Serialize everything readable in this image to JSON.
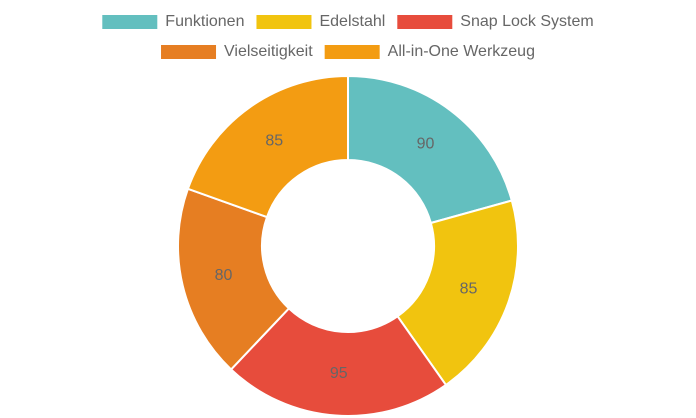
{
  "chart_data": {
    "type": "doughnut",
    "categories": [
      "Funktionen",
      "Edelstahl",
      "Snap Lock System",
      "Vielseitigkeit",
      "All-in-One Werkzeug"
    ],
    "values": [
      90,
      85,
      95,
      80,
      85
    ],
    "colors": [
      "#63bfbf",
      "#f1c40f",
      "#e74c3c",
      "#e67e22",
      "#f39c12"
    ],
    "legend": "top"
  }
}
